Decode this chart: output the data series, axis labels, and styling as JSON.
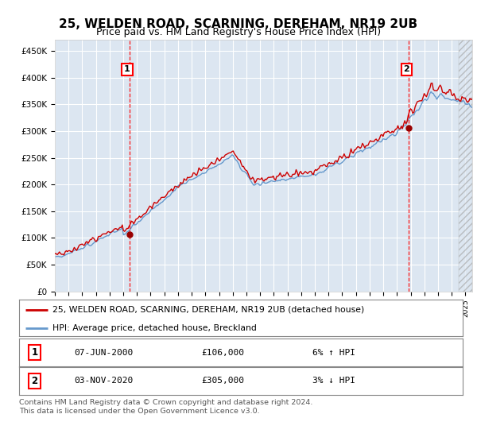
{
  "title": "25, WELDEN ROAD, SCARNING, DEREHAM, NR19 2UB",
  "subtitle": "Price paid vs. HM Land Registry's House Price Index (HPI)",
  "ylim": [
    0,
    470000
  ],
  "yticks": [
    0,
    50000,
    100000,
    150000,
    200000,
    250000,
    300000,
    350000,
    400000,
    450000
  ],
  "ytick_labels": [
    "£0",
    "£50K",
    "£100K",
    "£150K",
    "£200K",
    "£250K",
    "£300K",
    "£350K",
    "£400K",
    "£450K"
  ],
  "plot_bg_color": "#dce6f1",
  "grid_color": "#ffffff",
  "hpi_color": "#6699cc",
  "price_color": "#cc0000",
  "marker_color": "#990000",
  "sale1_date": 2000.44,
  "sale1_price": 106000,
  "sale2_date": 2020.84,
  "sale2_price": 305000,
  "legend_line1": "25, WELDEN ROAD, SCARNING, DEREHAM, NR19 2UB (detached house)",
  "legend_line2": "HPI: Average price, detached house, Breckland",
  "table_row1_num": "1",
  "table_row1_date": "07-JUN-2000",
  "table_row1_price": "£106,000",
  "table_row1_hpi": "6% ↑ HPI",
  "table_row2_num": "2",
  "table_row2_date": "03-NOV-2020",
  "table_row2_price": "£305,000",
  "table_row2_hpi": "3% ↓ HPI",
  "footer": "Contains HM Land Registry data © Crown copyright and database right 2024.\nThis data is licensed under the Open Government Licence v3.0.",
  "title_fontsize": 11,
  "subtitle_fontsize": 9,
  "xlim_start": 1995,
  "xlim_end": 2025.5,
  "hatch_start": 2024.5
}
